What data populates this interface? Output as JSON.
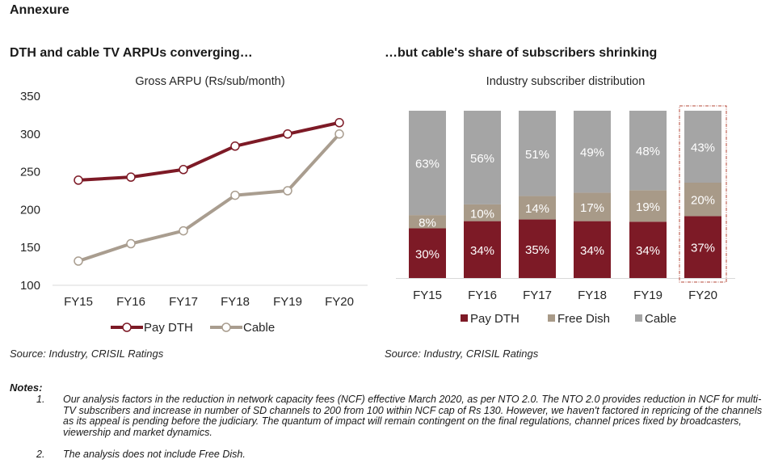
{
  "page": {
    "heading": "Annexure",
    "notes_heading": "Notes:",
    "notes": [
      {
        "num": "1.",
        "text": "Our analysis factors in the reduction in network capacity fees (NCF) effective March 2020, as per NTO 2.0. The NTO 2.0 provides reduction in NCF for multi-TV subscribers and increase in number of SD channels to 200 from 100 within NCF cap of Rs 130. However, we haven't factored in repricing of the channels as its appeal is pending before the judiciary. The quantum of impact will remain contingent on the final regulations, channel prices fixed by broadcasters, viewership and market dynamics."
      },
      {
        "num": "2.",
        "text": "The analysis does not include Free Dish."
      }
    ]
  },
  "colors": {
    "pay_dth": "#7d1a26",
    "cable_line": "#a99d8f",
    "free_dish": "#a89a88",
    "cable_bar": "#a5a5a5",
    "highlight": "#b5483a"
  },
  "chart_data": [
    {
      "type": "line",
      "heading": "DTH and cable TV ARPUs converging…",
      "title": "Gross ARPU (Rs/sub/month)",
      "xlabel": "",
      "ylabel": "",
      "categories": [
        "FY15",
        "FY16",
        "FY17",
        "FY18",
        "FY19",
        "FY20"
      ],
      "ylim": [
        100,
        350
      ],
      "yticks": [
        100,
        150,
        200,
        250,
        300,
        350
      ],
      "series": [
        {
          "name": "Pay DTH",
          "values": [
            239,
            243,
            253,
            284,
            300,
            315
          ]
        },
        {
          "name": "Cable",
          "values": [
            132,
            155,
            172,
            219,
            225,
            300
          ]
        }
      ],
      "legend": "bottom",
      "grid": false,
      "source": "Source: Industry, CRISIL Ratings"
    },
    {
      "type": "bar",
      "stacked": true,
      "heading": "…but cable's share of subscribers shrinking",
      "title": "Industry subscriber distribution",
      "xlabel": "",
      "ylabel": "",
      "categories": [
        "FY15",
        "FY16",
        "FY17",
        "FY18",
        "FY19",
        "FY20"
      ],
      "ylim": [
        0,
        100
      ],
      "series": [
        {
          "name": "Pay DTH",
          "values": [
            30,
            34,
            35,
            34,
            34,
            37
          ],
          "labels": [
            "30%",
            "34%",
            "35%",
            "34%",
            "34%",
            "37%"
          ]
        },
        {
          "name": "Free Dish",
          "values": [
            8,
            10,
            14,
            17,
            19,
            20
          ],
          "labels": [
            "8%",
            "10%",
            "14%",
            "17%",
            "19%",
            "20%"
          ]
        },
        {
          "name": "Cable",
          "values": [
            63,
            56,
            51,
            49,
            48,
            43
          ],
          "labels": [
            "63%",
            "56%",
            "51%",
            "49%",
            "48%",
            "43%"
          ]
        }
      ],
      "highlighted_category": "FY20",
      "legend": "bottom",
      "grid": false,
      "source": "Source: Industry, CRISIL Ratings"
    }
  ]
}
